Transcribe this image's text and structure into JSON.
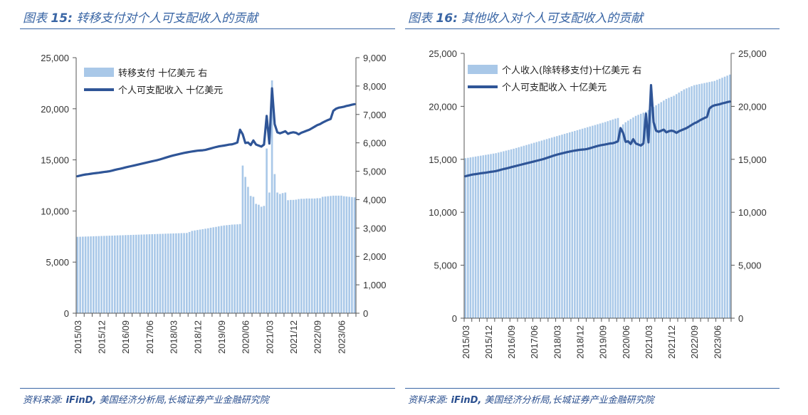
{
  "left_panel": {
    "caption_prefix": "图表",
    "caption_number": "15:",
    "caption_text": "转移支付对个人可支配收入的贡献",
    "source_prefix": "资料来源:",
    "source_brand": "iFinD,",
    "source_rest": "美国经济分析局,长城证券产业金融研究院"
  },
  "right_panel": {
    "caption_prefix": "图表",
    "caption_number": "16:",
    "caption_text": "其他收入对个人可支配收入的贡献",
    "source_prefix": "资料来源:",
    "source_brand": "iFinD,",
    "source_rest": "美国经济分析局,长城证券产业金融研究院"
  },
  "colors": {
    "bar": "#a9c8e8",
    "line": "#2f5597",
    "accent": "#3a66a5"
  },
  "chart_data": [
    {
      "type": "bar+line",
      "x_tick_labels": [
        "2015/03",
        "2015/12",
        "2016/09",
        "2017/06",
        "2018/03",
        "2018/12",
        "2019/09",
        "2020/06",
        "2021/03",
        "2021/12",
        "2022/09",
        "2023/06"
      ],
      "x_start": "2015/03",
      "n_months": 105,
      "left_ylim": [
        0,
        25000
      ],
      "left_ticks": [
        "0",
        "5,000",
        "10,000",
        "15,000",
        "20,000",
        "25,000"
      ],
      "right_ylim": [
        0,
        9000
      ],
      "right_ticks": [
        "0",
        "1,000",
        "2,000",
        "3,000",
        "4,000",
        "5,000",
        "6,000",
        "7,000",
        "8,000",
        "9,000"
      ],
      "grid": false,
      "legend_position": "top-left",
      "series": [
        {
          "name": "转移支付 十亿美元 右",
          "kind": "bar",
          "axis": "right",
          "values": [
            2690,
            2693,
            2697,
            2700,
            2703,
            2706,
            2710,
            2713,
            2716,
            2720,
            2723,
            2726,
            2730,
            2733,
            2736,
            2740,
            2743,
            2746,
            2750,
            2753,
            2756,
            2760,
            2763,
            2766,
            2770,
            2773,
            2776,
            2780,
            2783,
            2786,
            2790,
            2793,
            2796,
            2800,
            2803,
            2806,
            2810,
            2813,
            2816,
            2820,
            2823,
            2826,
            2860,
            2900,
            2915,
            2930,
            2945,
            2960,
            2975,
            2990,
            3010,
            3025,
            3040,
            3060,
            3075,
            3090,
            3100,
            3110,
            3120,
            3125,
            3130,
            3140,
            5200,
            4800,
            4450,
            4130,
            4100,
            3850,
            3820,
            3750,
            3780,
            5800,
            4250,
            8200,
            4900,
            4250,
            4200,
            4230,
            4250,
            3980,
            3990,
            3990,
            4000,
            4020,
            4030,
            4030,
            4040,
            4040,
            4040,
            4040,
            4050,
            4050,
            4100,
            4110,
            4120,
            4130,
            4140,
            4140,
            4140,
            4140,
            4120,
            4110,
            4100,
            4090,
            4080
          ]
        },
        {
          "name": "个人可支配收入 十亿美元",
          "kind": "line",
          "axis": "left",
          "values": [
            13400,
            13460,
            13520,
            13570,
            13600,
            13640,
            13680,
            13710,
            13740,
            13780,
            13820,
            13850,
            13890,
            13950,
            14020,
            14080,
            14130,
            14190,
            14260,
            14320,
            14380,
            14440,
            14500,
            14560,
            14620,
            14680,
            14740,
            14800,
            14860,
            14920,
            14980,
            15050,
            15130,
            15210,
            15290,
            15370,
            15440,
            15500,
            15560,
            15620,
            15680,
            15730,
            15780,
            15820,
            15860,
            15900,
            15920,
            15940,
            15980,
            16050,
            16120,
            16190,
            16260,
            16320,
            16360,
            16400,
            16450,
            16500,
            16520,
            16600,
            16700,
            17950,
            17500,
            16650,
            16700,
            16450,
            16900,
            16500,
            16400,
            16300,
            16500,
            19300,
            16600,
            22000,
            18500,
            17700,
            17600,
            17700,
            17800,
            17550,
            17650,
            17700,
            17650,
            17500,
            17650,
            17750,
            17850,
            17950,
            18100,
            18250,
            18400,
            18500,
            18650,
            18780,
            18900,
            19000,
            19800,
            20000,
            20100,
            20150,
            20200,
            20280,
            20330,
            20400,
            20450
          ]
        }
      ]
    },
    {
      "type": "bar+line",
      "x_tick_labels": [
        "2015/03",
        "2015/12",
        "2016/09",
        "2017/06",
        "2018/03",
        "2018/12",
        "2019/09",
        "2020/06",
        "2021/03",
        "2021/12",
        "2022/09",
        "2023/06"
      ],
      "x_start": "2015/03",
      "n_months": 105,
      "left_ylim": [
        0,
        25000
      ],
      "left_ticks": [
        "0",
        "5,000",
        "10,000",
        "15,000",
        "20,000",
        "25,000"
      ],
      "right_ylim": [
        0,
        25000
      ],
      "right_ticks": [
        "0",
        "5,000",
        "10,000",
        "15,000",
        "20,000",
        "25,000"
      ],
      "grid": false,
      "legend_position": "top-left",
      "series": [
        {
          "name": "个人收入(除转移支付)十亿美元 右",
          "kind": "bar",
          "axis": "right",
          "values": [
            15100,
            15140,
            15180,
            15220,
            15260,
            15300,
            15340,
            15380,
            15420,
            15460,
            15500,
            15540,
            15580,
            15640,
            15700,
            15760,
            15820,
            15880,
            15940,
            16000,
            16070,
            16140,
            16210,
            16280,
            16350,
            16420,
            16490,
            16560,
            16630,
            16700,
            16770,
            16840,
            16910,
            16980,
            17050,
            17120,
            17190,
            17260,
            17330,
            17400,
            17470,
            17540,
            17610,
            17680,
            17750,
            17820,
            17890,
            17960,
            18030,
            18100,
            18170,
            18240,
            18310,
            18380,
            18450,
            18520,
            18600,
            18680,
            18760,
            18840,
            18900,
            18000,
            18300,
            18500,
            18650,
            18800,
            18950,
            19100,
            19200,
            19300,
            19400,
            19500,
            19650,
            19800,
            19950,
            20100,
            20250,
            20400,
            20550,
            20700,
            20800,
            20900,
            21000,
            21150,
            21300,
            21450,
            21600,
            21700,
            21800,
            21900,
            22000,
            22050,
            22100,
            22150,
            22200,
            22250,
            22300,
            22350,
            22400,
            22500,
            22600,
            22700,
            22800,
            22900,
            23000
          ]
        },
        {
          "name": "个人可支配收入 十亿美元",
          "kind": "line",
          "axis": "left",
          "values": [
            13400,
            13460,
            13520,
            13570,
            13600,
            13640,
            13680,
            13710,
            13740,
            13780,
            13820,
            13850,
            13890,
            13950,
            14020,
            14080,
            14130,
            14190,
            14260,
            14320,
            14380,
            14440,
            14500,
            14560,
            14620,
            14680,
            14740,
            14800,
            14860,
            14920,
            14980,
            15050,
            15130,
            15210,
            15290,
            15370,
            15440,
            15500,
            15560,
            15620,
            15680,
            15730,
            15780,
            15820,
            15860,
            15900,
            15920,
            15940,
            15980,
            16050,
            16120,
            16190,
            16260,
            16320,
            16360,
            16400,
            16450,
            16500,
            16520,
            16600,
            16700,
            17950,
            17500,
            16650,
            16700,
            16450,
            16900,
            16500,
            16400,
            16300,
            16500,
            19300,
            16600,
            22000,
            18500,
            17700,
            17600,
            17700,
            17800,
            17550,
            17650,
            17700,
            17650,
            17500,
            17650,
            17750,
            17850,
            17950,
            18100,
            18250,
            18400,
            18500,
            18650,
            18780,
            18900,
            19000,
            19800,
            20000,
            20100,
            20150,
            20200,
            20280,
            20330,
            20400,
            20450
          ]
        }
      ]
    }
  ]
}
